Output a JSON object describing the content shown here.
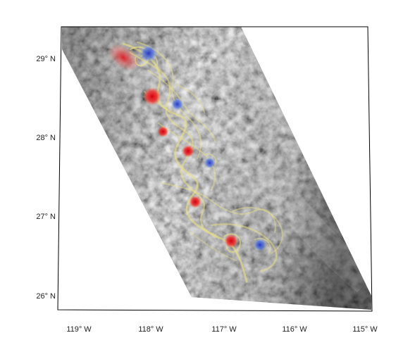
{
  "map": {
    "lat_ticks": [
      "29° N",
      "28° N",
      "27° N",
      "26° N"
    ],
    "lon_ticks": [
      "119° W",
      "118° W",
      "117° W",
      "116° W",
      "115° W"
    ],
    "colors": {
      "positive_vortex": "#e0101a",
      "negative_vortex": "#2a3fd0",
      "streamlines": "#e9df86",
      "cloud_base": "#8a8a8a",
      "frame": "#000000"
    },
    "vortices": [
      {
        "lon": -118.4,
        "lat": 29.05,
        "sign": "positive"
      },
      {
        "lon": -118.05,
        "lat": 29.1,
        "sign": "negative"
      },
      {
        "lon": -118.0,
        "lat": 28.55,
        "sign": "positive"
      },
      {
        "lon": -117.65,
        "lat": 28.45,
        "sign": "negative"
      },
      {
        "lon": -117.85,
        "lat": 28.1,
        "sign": "positive"
      },
      {
        "lon": -117.5,
        "lat": 27.85,
        "sign": "positive"
      },
      {
        "lon": -117.2,
        "lat": 27.7,
        "sign": "negative"
      },
      {
        "lon": -117.4,
        "lat": 27.2,
        "sign": "positive"
      },
      {
        "lon": -116.9,
        "lat": 26.7,
        "sign": "positive"
      },
      {
        "lon": -116.5,
        "lat": 26.65,
        "sign": "negative"
      }
    ]
  }
}
